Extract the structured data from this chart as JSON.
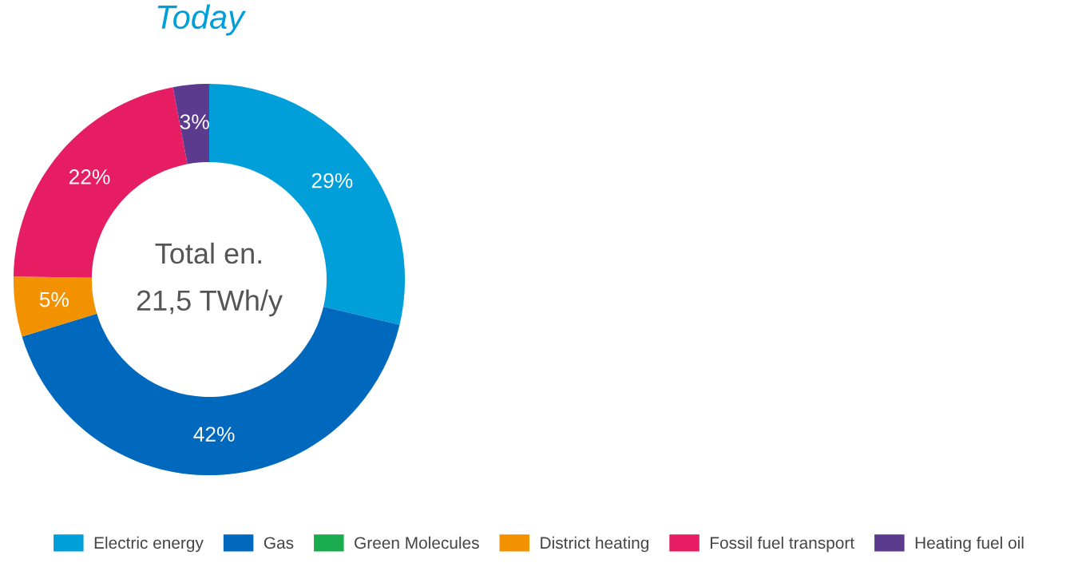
{
  "chart_data": {
    "type": "donut",
    "title": "Today",
    "categories": [
      "Electric energy",
      "Gas",
      "Green Molecules",
      "District heating",
      "Fossil fuel transport",
      "Heating fuel oil"
    ],
    "values": [
      29,
      42,
      0,
      5,
      22,
      3
    ],
    "colors": [
      "#009fda",
      "#0068bd",
      "#1aab4f",
      "#f39200",
      "#e71d63",
      "#5c3a8e"
    ],
    "value_labels": [
      "29%",
      "42%",
      null,
      "5%",
      "22%",
      "3%"
    ],
    "annotations": [
      "Total en.",
      "21,5 TWh/y"
    ],
    "legend": "bottom"
  }
}
